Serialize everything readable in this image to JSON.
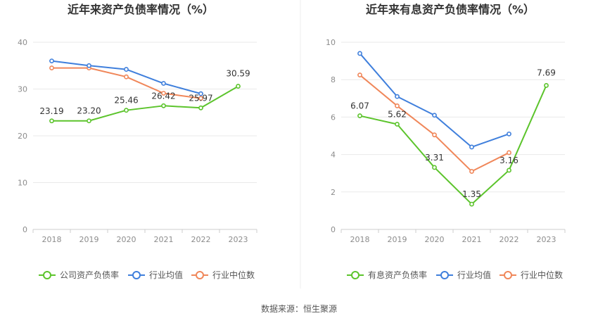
{
  "source": "数据来源：恒生聚源",
  "chart_data": [
    {
      "type": "line",
      "title": "近年来资产负债率情况（%）",
      "categories": [
        "2018",
        "2019",
        "2020",
        "2021",
        "2022",
        "2023"
      ],
      "ylim": [
        0,
        40
      ],
      "yticks": [
        0,
        10,
        20,
        30,
        40
      ],
      "grid": true,
      "legend_position": "bottom",
      "series": [
        {
          "name": "公司资产负债率",
          "color": "#5cc42c",
          "values": [
            23.19,
            23.2,
            25.46,
            26.42,
            25.97,
            30.59
          ],
          "labels": [
            "23.19",
            "23.20",
            "25.46",
            "26.42",
            "25.97",
            "30.59"
          ]
        },
        {
          "name": "行业均值",
          "color": "#3f7fdc",
          "values": [
            36.0,
            35.0,
            34.2,
            31.2,
            29.0,
            null
          ]
        },
        {
          "name": "行业中位数",
          "color": "#f0875a",
          "values": [
            34.5,
            34.5,
            32.6,
            29.1,
            28.0,
            null
          ]
        }
      ]
    },
    {
      "type": "line",
      "title": "近年来有息资产负债率情况（%）",
      "categories": [
        "2018",
        "2019",
        "2020",
        "2021",
        "2022",
        "2023"
      ],
      "ylim": [
        0,
        10
      ],
      "yticks": [
        0,
        2,
        4,
        6,
        8,
        10
      ],
      "grid": true,
      "legend_position": "bottom",
      "series": [
        {
          "name": "有息资产负债率",
          "color": "#5cc42c",
          "values": [
            6.07,
            5.62,
            3.31,
            1.35,
            3.16,
            7.69
          ],
          "labels": [
            "6.07",
            "5.62",
            "3.31",
            "1.35",
            "3.16",
            "7.69"
          ]
        },
        {
          "name": "行业均值",
          "color": "#3f7fdc",
          "values": [
            9.4,
            7.1,
            6.1,
            4.4,
            5.1,
            null
          ]
        },
        {
          "name": "行业中位数",
          "color": "#f0875a",
          "values": [
            8.25,
            6.6,
            5.05,
            3.1,
            4.1,
            null
          ]
        }
      ]
    }
  ]
}
